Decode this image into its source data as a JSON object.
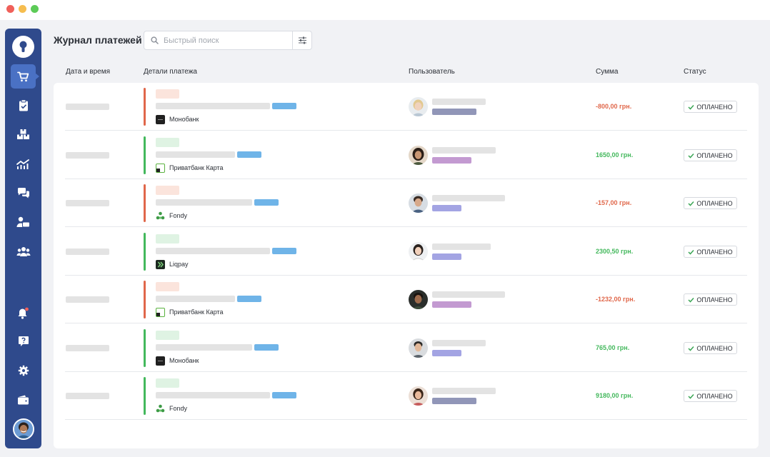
{
  "header": {
    "title": "Журнал платежей",
    "search_placeholder": "Быстрый поиск"
  },
  "columns": {
    "datetime": "Дата и время",
    "details": "Детали платежа",
    "user": "Пользователь",
    "amount": "Сумма",
    "status": "Статус"
  },
  "sidebar": {
    "items": [
      {
        "icon": "cart-icon",
        "active": true
      },
      {
        "icon": "clipboard-check-icon",
        "active": false
      },
      {
        "icon": "boxes-icon",
        "active": false
      },
      {
        "icon": "chart-icon",
        "active": false
      },
      {
        "icon": "chat-icon",
        "active": false
      },
      {
        "icon": "user-chat-icon",
        "active": false
      },
      {
        "icon": "users-icon",
        "active": false
      },
      {
        "icon": "bell-icon",
        "active": false
      },
      {
        "icon": "help-icon",
        "active": false
      },
      {
        "icon": "gear-icon",
        "active": false
      },
      {
        "icon": "wallet-icon",
        "active": false
      }
    ]
  },
  "colors": {
    "sidebar": "#2f4a8c",
    "active": "#4a71c4",
    "negative": "#e0674a",
    "positive": "#43b85c",
    "status_check": "#3aa655"
  },
  "payments": [
    {
      "direction": "out",
      "bank": "Монобанк",
      "bank_icon": "monobank-icon",
      "amount": "-800,00 грн.",
      "status": "ОПЛАЧЕНО"
    },
    {
      "direction": "in",
      "bank": "Приватбанк Карта",
      "bank_icon": "privatbank-icon",
      "amount": "1650,00 грн.",
      "status": "ОПЛАЧЕНО"
    },
    {
      "direction": "out",
      "bank": "Fondy",
      "bank_icon": "fondy-icon",
      "amount": "-157,00 грн.",
      "status": "ОПЛАЧЕНО"
    },
    {
      "direction": "in",
      "bank": "Liqpay",
      "bank_icon": "liqpay-icon",
      "amount": "2300,50 грн.",
      "status": "ОПЛАЧЕНО"
    },
    {
      "direction": "out",
      "bank": "Приватбанк Карта",
      "bank_icon": "privatbank-icon",
      "amount": "-1232,00 грн.",
      "status": "ОПЛАЧЕНО"
    },
    {
      "direction": "in",
      "bank": "Монобанк",
      "bank_icon": "monobank-icon",
      "amount": "765,00 грн.",
      "status": "ОПЛАЧЕНО"
    },
    {
      "direction": "in",
      "bank": "Fondy",
      "bank_icon": "fondy-icon",
      "amount": "9180,00 грн.",
      "status": "ОПЛАЧЕНО"
    }
  ]
}
